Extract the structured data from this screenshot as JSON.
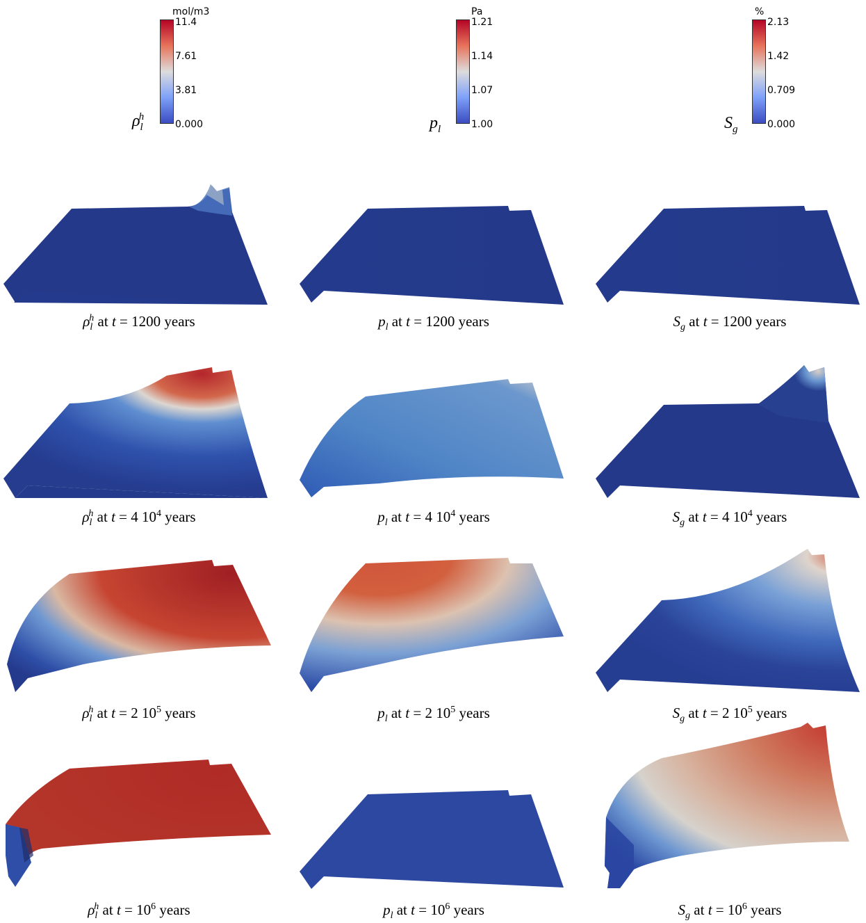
{
  "colorbars": [
    {
      "unit": "mol/m3",
      "symbol": "ρ",
      "sub": "l",
      "sup": "h",
      "ticks": [
        "11.4",
        "7.61",
        "3.81",
        "0.000"
      ]
    },
    {
      "unit": "Pa",
      "symbol": "p",
      "sub": "l",
      "sup": "",
      "ticks": [
        "1.21",
        "1.14",
        "1.07",
        "1.00"
      ]
    },
    {
      "unit": "%",
      "symbol": "S",
      "sub": "g",
      "sup": "",
      "ticks": [
        "2.13",
        "1.42",
        "0.709",
        "0.000"
      ]
    }
  ],
  "captions": {
    "at": "at",
    "t": "t",
    "eq": "=",
    "years": "years",
    "times": [
      "1200",
      "4 10",
      "2 10",
      "10"
    ],
    "exponents": [
      "",
      "4",
      "5",
      "6"
    ]
  },
  "colors": {
    "low": "#3b4cc0",
    "mid": "#dddcdc",
    "high": "#b40426"
  }
}
